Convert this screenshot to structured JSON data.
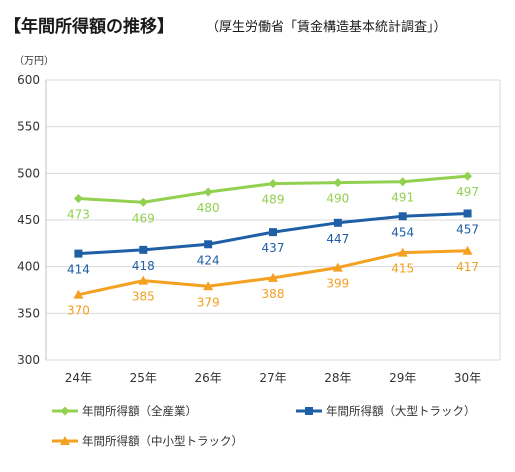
{
  "title": "【年間所得額の推移】",
  "subtitle": "（厚生労働省「賃金構造基本統計調査」）",
  "chart_data": {
    "type": "line",
    "ylabel": "（万円）",
    "ylim": [
      300,
      600
    ],
    "yticks": [
      "300",
      "350",
      "400",
      "450",
      "500",
      "550",
      "600"
    ],
    "grid": true,
    "legend_position": "bottom",
    "categories": [
      "24年",
      "25年",
      "26年",
      "27年",
      "28年",
      "29年",
      "30年"
    ],
    "series": [
      {
        "name": "年間所得額（全産業）",
        "color": "#92D050",
        "marker": "diamond",
        "values": [
          473,
          469,
          480,
          489,
          490,
          491,
          497
        ],
        "value_labels": [
          "473",
          "469",
          "480",
          "489",
          "490",
          "491",
          "497"
        ]
      },
      {
        "name": "年間所得額（大型トラック）",
        "color": "#1F5FA6",
        "marker": "square",
        "values": [
          414,
          418,
          424,
          437,
          447,
          454,
          457
        ],
        "value_labels": [
          "414",
          "418",
          "424",
          "437",
          "447",
          "454",
          "457"
        ]
      },
      {
        "name": "年間所得額（中小型トラック）",
        "color": "#F4A020",
        "marker": "triangle",
        "values": [
          370,
          385,
          379,
          388,
          399,
          415,
          417
        ],
        "value_labels": [
          "370",
          "385",
          "379",
          "388",
          "399",
          "415",
          "417"
        ]
      }
    ]
  }
}
